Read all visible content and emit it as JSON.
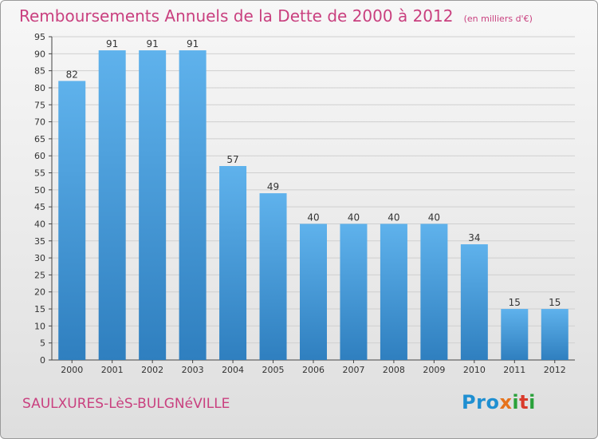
{
  "header": {
    "title": "Remboursements Annuels de la Dette de 2000 à 2012",
    "subtitle": "(en milliers d'€)"
  },
  "footer": {
    "commune": "SAULXURES-LèS-BULGNéVILLE",
    "logo_text": "Proxiti",
    "logo_colors": [
      "#1f8fd1",
      "#1f8fd1",
      "#1f8fd1",
      "#e6731c",
      "#2aa13a",
      "#d93a2b",
      "#2aa13a"
    ]
  },
  "colors": {
    "bar_top": "#5fb2ec",
    "bar_bottom": "#2f7fbf",
    "grid": "#cfcfcf",
    "axis": "#444444",
    "title": "#c9407f"
  },
  "chart_data": {
    "type": "bar",
    "title": "Remboursements Annuels de la Dette de 2000 à 2012",
    "xlabel": "",
    "ylabel": "",
    "categories": [
      "2000",
      "2001",
      "2002",
      "2003",
      "2004",
      "2005",
      "2006",
      "2007",
      "2008",
      "2009",
      "2010",
      "2011",
      "2012"
    ],
    "values": [
      82,
      91,
      91,
      91,
      57,
      49,
      40,
      40,
      40,
      40,
      34,
      15,
      15
    ],
    "ylim": [
      0,
      95
    ],
    "yticks": [
      0,
      5,
      10,
      15,
      20,
      25,
      30,
      35,
      40,
      45,
      50,
      55,
      60,
      65,
      70,
      75,
      80,
      85,
      90,
      95
    ],
    "grid": true,
    "legend": "none"
  }
}
